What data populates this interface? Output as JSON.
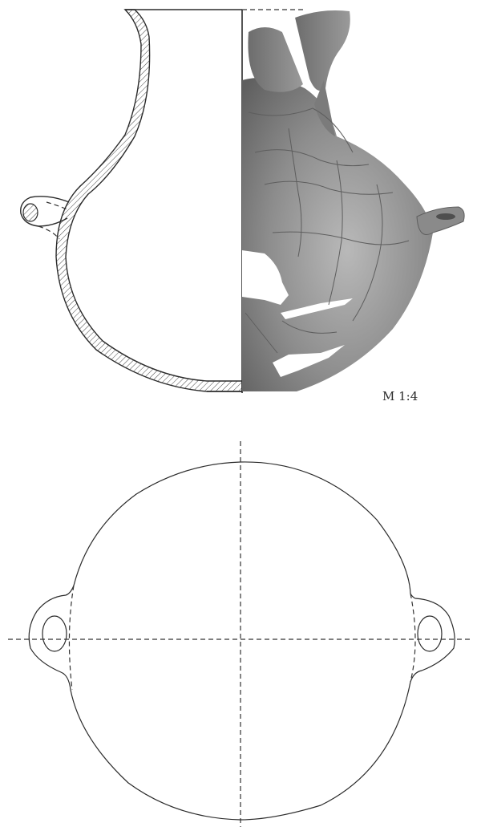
{
  "figure": {
    "scale_label": "M 1:4"
  }
}
